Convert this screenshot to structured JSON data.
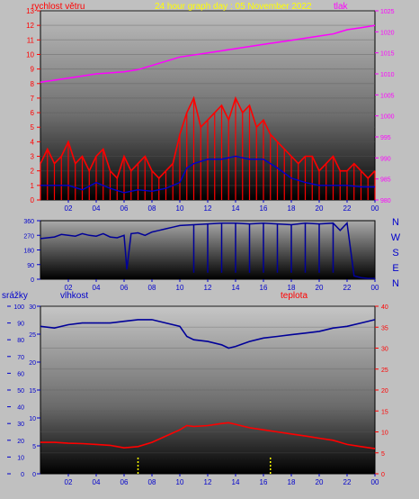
{
  "header": {
    "title": "24 hour graph day : 05 November 2022",
    "left_label": "rychlost větru",
    "right_label": "tlak",
    "title_color": "#ffff00",
    "left_color": "#ff0000",
    "right_color": "#ff00ff"
  },
  "colors": {
    "wind": "#ff0000",
    "gust": "#ff0000",
    "avg": "#0000cc",
    "pressure": "#ff00ff",
    "direction": "#000099",
    "humidity": "#000099",
    "temperature": "#ff0000",
    "rain": "#ffff00",
    "axis_text_left": "#0000cc",
    "axis_text_right": "#ff00ff",
    "axis_text_temp": "#ff0000"
  },
  "time_ticks": [
    "02",
    "04",
    "06",
    "08",
    "10",
    "12",
    "14",
    "16",
    "18",
    "20",
    "22",
    "00"
  ],
  "direction_labels": [
    "N",
    "W",
    "S",
    "E",
    "N"
  ],
  "bottom_labels": {
    "rain": "srážky",
    "humidity": "vlhkost",
    "temperature": "teplota"
  },
  "chart_data": [
    {
      "type": "line",
      "panel": "wind_pressure",
      "x_range_hours": [
        0,
        24
      ],
      "ylim_left": [
        0,
        13
      ],
      "ylim_right": [
        980,
        1025
      ],
      "yticks_left": [
        "0",
        "1",
        "2",
        "3",
        "4",
        "5",
        "6",
        "7",
        "8",
        "9",
        "10",
        "11",
        "12",
        "13"
      ],
      "yticks_right": [
        "980",
        "985",
        "990",
        "995",
        "1000",
        "1005",
        "1010",
        "1015",
        "1020",
        "1025"
      ],
      "series": [
        {
          "name": "wind gust",
          "axis": "left",
          "x": [
            0,
            0.5,
            1,
            1.5,
            2,
            2.5,
            3,
            3.5,
            4,
            4.5,
            5,
            5.5,
            6,
            6.5,
            7,
            7.5,
            8,
            8.5,
            9,
            9.5,
            10,
            10.5,
            11,
            11.5,
            12,
            12.5,
            13,
            13.5,
            14,
            14.5,
            15,
            15.5,
            16,
            16.5,
            17,
            17.5,
            18,
            18.5,
            19,
            19.5,
            20,
            20.5,
            21,
            21.5,
            22,
            22.5,
            23,
            23.5,
            24
          ],
          "y": [
            2.5,
            3.5,
            2.5,
            3,
            4,
            2.5,
            3,
            2,
            3,
            3.5,
            2,
            1.5,
            3,
            2,
            2.5,
            3,
            2,
            1.5,
            2,
            2.5,
            4.5,
            6,
            7,
            5,
            5.5,
            6,
            6.5,
            5.5,
            7,
            6,
            6.5,
            5,
            5.5,
            4.5,
            4,
            3.5,
            3,
            2.5,
            3,
            3,
            2,
            2.5,
            3,
            2,
            2,
            2.5,
            2,
            1.5,
            2
          ]
        },
        {
          "name": "wind average",
          "axis": "left",
          "x": [
            0,
            1,
            2,
            3,
            4,
            5,
            6,
            7,
            8,
            9,
            10,
            10.5,
            11,
            12,
            13,
            14,
            15,
            16,
            17,
            18,
            19,
            20,
            21,
            22,
            23,
            24
          ],
          "y": [
            1,
            1,
            1,
            0.7,
            1.2,
            0.8,
            0.5,
            0.7,
            0.6,
            0.8,
            1.2,
            2.2,
            2.5,
            2.8,
            2.8,
            3,
            2.8,
            2.8,
            2.2,
            1.5,
            1.2,
            1,
            1,
            1,
            0.9,
            0.9
          ]
        },
        {
          "name": "pressure",
          "axis": "right",
          "x": [
            0,
            2,
            4,
            6,
            7,
            8,
            10,
            12,
            14,
            16,
            17,
            18,
            20,
            21,
            22,
            23,
            24
          ],
          "y": [
            1008,
            1009,
            1010,
            1010.5,
            1011,
            1012,
            1014,
            1015,
            1016,
            1017,
            1017.5,
            1018,
            1019,
            1019.5,
            1020.5,
            1021,
            1021.5
          ]
        }
      ]
    },
    {
      "type": "scatter",
      "panel": "wind_direction",
      "x_range_hours": [
        0,
        24
      ],
      "ylim": [
        0,
        360
      ],
      "yticks": [
        "0",
        "90",
        "180",
        "270",
        "360"
      ],
      "x": [
        0,
        0.5,
        1,
        1.5,
        2,
        2.5,
        3,
        3.5,
        4,
        4.5,
        5,
        5.5,
        6,
        6.2,
        6.5,
        7,
        7.5,
        8,
        8.5,
        9,
        9.5,
        10,
        11,
        12,
        13,
        14,
        15,
        16,
        17,
        18,
        19,
        20,
        21,
        21.5,
        22,
        22.5,
        23,
        23.5,
        24
      ],
      "y": [
        250,
        255,
        260,
        275,
        270,
        265,
        280,
        270,
        265,
        280,
        260,
        255,
        270,
        60,
        280,
        285,
        270,
        290,
        300,
        310,
        320,
        330,
        335,
        340,
        345,
        345,
        340,
        345,
        340,
        335,
        345,
        340,
        345,
        300,
        345,
        20,
        10,
        5,
        5
      ]
    },
    {
      "type": "line",
      "panel": "humidity_temperature",
      "x_range_hours": [
        0,
        24
      ],
      "ylim_rain": [
        0,
        100
      ],
      "ylim_humidity": [
        0,
        30
      ],
      "ylim_temperature": [
        0,
        40
      ],
      "yticks_rain": [
        "0",
        "10",
        "20",
        "30",
        "40",
        "50",
        "60",
        "70",
        "80",
        "90",
        "100"
      ],
      "yticks_humidity": [
        "0",
        "5",
        "10",
        "15",
        "20",
        "25",
        "30"
      ],
      "yticks_temperature": [
        "0",
        "5",
        "10",
        "15",
        "20",
        "25",
        "30",
        "35",
        "40"
      ],
      "series": [
        {
          "name": "humidity",
          "axis": "rain",
          "x": [
            0,
            1,
            2,
            3,
            4,
            5,
            6,
            7,
            8,
            9,
            10,
            10.5,
            11,
            12,
            13,
            13.5,
            14,
            15,
            16,
            17,
            18,
            19,
            20,
            21,
            22,
            23,
            24
          ],
          "y": [
            88,
            87,
            89,
            90,
            90,
            90,
            91,
            92,
            92,
            90,
            88,
            82,
            80,
            79,
            77,
            75,
            76,
            79,
            81,
            82,
            83,
            84,
            85,
            87,
            88,
            90,
            92
          ]
        },
        {
          "name": "temperature",
          "axis": "temperature",
          "x": [
            0,
            1,
            2,
            3,
            4,
            5,
            6,
            7,
            8,
            9,
            10,
            10.5,
            11,
            12,
            13,
            13.5,
            14,
            15,
            16,
            17,
            18,
            19,
            20,
            21,
            22,
            23,
            24
          ],
          "y": [
            7.5,
            7.5,
            7.3,
            7.2,
            7,
            6.8,
            6.2,
            6.5,
            7.5,
            9,
            10.5,
            11.5,
            11.3,
            11.5,
            12,
            12.2,
            11.8,
            11,
            10.5,
            10,
            9.5,
            9,
            8.5,
            8,
            7,
            6.5,
            6
          ]
        },
        {
          "name": "rain",
          "axis": "rain",
          "type": "bar",
          "x": [
            7,
            16.5
          ],
          "y": [
            10,
            10
          ]
        }
      ]
    }
  ]
}
